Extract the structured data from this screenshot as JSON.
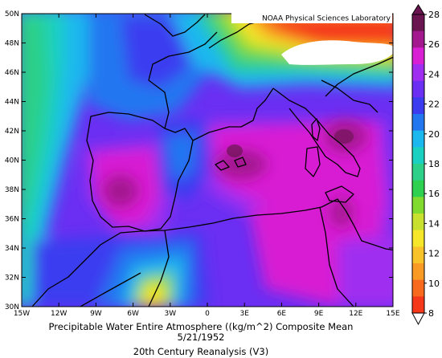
{
  "credit": "NOAA Physical Sciences Laboratory",
  "title": "Precipitable Water Entire Atmosphere ((kg/m^2) Composite Mean",
  "date": "5/21/1952",
  "source": "20th Century Reanalysis (V3)",
  "lat_labels": [
    "50N",
    "48N",
    "46N",
    "44N",
    "42N",
    "40N",
    "38N",
    "36N",
    "34N",
    "32N",
    "30N"
  ],
  "lon_labels": [
    "15W",
    "12W",
    "9W",
    "6W",
    "3W",
    "0",
    "3E",
    "6E",
    "9E",
    "12E",
    "15E"
  ],
  "colorbar": {
    "ticks": [
      "28",
      "26",
      "24",
      "22",
      "20",
      "18",
      "16",
      "14",
      "12",
      "10",
      "8"
    ],
    "colors": [
      "#6a1550",
      "#a3178f",
      "#d81fd3",
      "#a02ef0",
      "#6a2ff2",
      "#3b3cf0",
      "#2277f0",
      "#1ab8ef",
      "#1ad0c0",
      "#2cd088",
      "#2ed050",
      "#80da30",
      "#c8e030",
      "#f5e62a",
      "#f8c22a",
      "#f89a24",
      "#f76a1e",
      "#f5381a"
    ]
  }
}
